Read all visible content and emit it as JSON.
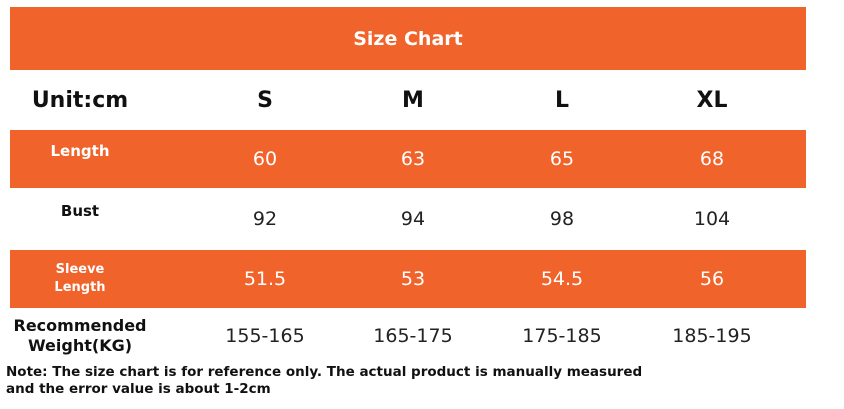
{
  "header": {
    "title": "Size Chart"
  },
  "table": {
    "columns": [
      "Unit:cm",
      "S",
      "M",
      "L",
      "XL"
    ],
    "rows": [
      [
        "Length",
        "60",
        "63",
        "65",
        "68"
      ],
      [
        "Bust",
        "92",
        "94",
        "98",
        "104"
      ],
      [
        "Sleeve Length",
        "51.5",
        "53",
        "54.5",
        "56"
      ],
      [
        "Recommended Weight(KG)",
        "155-165",
        "165-175",
        "175-185",
        "185-195"
      ]
    ]
  },
  "note": "Note: The size chart is for reference only. The actual product is manually measured and the error value is about 1-2cm"
}
